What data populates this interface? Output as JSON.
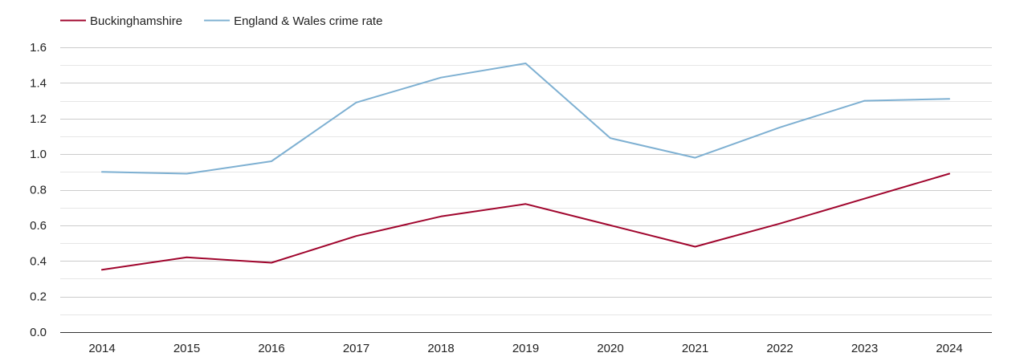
{
  "chart_data": {
    "type": "line",
    "categories": [
      "2014",
      "2015",
      "2016",
      "2017",
      "2018",
      "2019",
      "2020",
      "2021",
      "2022",
      "2023",
      "2024"
    ],
    "series": [
      {
        "name": "Buckinghamshire",
        "color": "#a0052d",
        "values": [
          0.35,
          0.42,
          0.39,
          0.54,
          0.65,
          0.72,
          0.6,
          0.48,
          0.61,
          0.75,
          0.89
        ]
      },
      {
        "name": "England & Wales crime rate",
        "color": "#7eb0d2",
        "values": [
          0.9,
          0.89,
          0.96,
          1.29,
          1.43,
          1.51,
          1.09,
          0.98,
          1.15,
          1.3,
          1.31
        ]
      }
    ],
    "ylim": [
      0,
      1.6
    ],
    "yticks": [
      "0.0",
      "0.2",
      "0.4",
      "0.6",
      "0.8",
      "1.0",
      "1.2",
      "1.4",
      "1.6"
    ],
    "grid": true,
    "legend_position": "top-left",
    "title": "",
    "xlabel": "",
    "ylabel": ""
  }
}
